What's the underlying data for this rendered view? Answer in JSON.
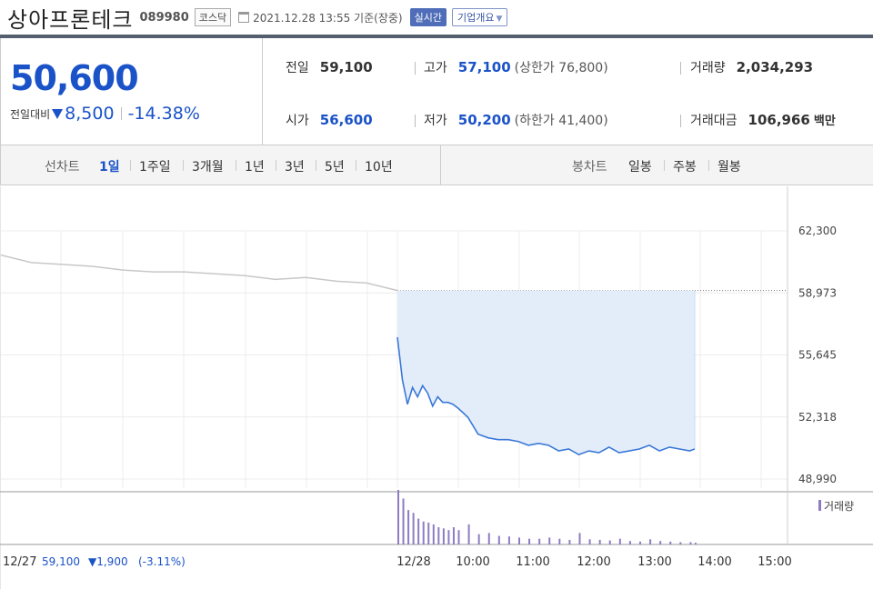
{
  "header": {
    "name": "상아프론테크",
    "code": "089980",
    "market": "코스닥",
    "datetime": "2021.12.28 13:55 기준(장중)",
    "realtime_label": "실시간",
    "company_label": "기업개요"
  },
  "quote": {
    "price": "50,600",
    "change_label": "전일대비",
    "change": "8,500",
    "change_pct": "-14.38%",
    "prev_close_label": "전일",
    "prev_close": "59,100",
    "open_label": "시가",
    "open": "56,600",
    "high_label": "고가",
    "high": "57,100",
    "upper_limit": "(상한가 76,800)",
    "low_label": "저가",
    "low": "50,200",
    "lower_limit": "(하한가 41,400)",
    "volume_label": "거래량",
    "volume": "2,034,293",
    "amount_label": "거래대금",
    "amount": "106,966",
    "amount_unit": "백만"
  },
  "periods": {
    "line_label": "선차트",
    "line_tabs": [
      "1일",
      "1주일",
      "3개월",
      "1년",
      "3년",
      "5년",
      "10년"
    ],
    "active": "1일",
    "candle_label": "봉차트",
    "candle_tabs": [
      "일봉",
      "주봉",
      "월봉"
    ]
  },
  "colors": {
    "up": "#e8412c",
    "down": "#1a52c8",
    "today_line": "#3a78d8",
    "today_fill": "#e3edfa",
    "prev_line": "#c8c8c8",
    "volume_bar": "#8e7cc3"
  },
  "chart_data": {
    "type": "line",
    "y_ticks": [
      "62,300",
      "58,973",
      "55,645",
      "52,318",
      "48,990"
    ],
    "ylim": [
      48990,
      62300
    ],
    "reference_price": 59100,
    "x_labels": [
      "12/28",
      "10:00",
      "11:00",
      "12:00",
      "13:00",
      "14:00",
      "15:00"
    ],
    "prev_day_label": "12/27",
    "prev_day_close": "59,100",
    "prev_day_change": "1,900",
    "prev_day_pct": "(-3.11%)",
    "volume_legend": "거래량",
    "grid": true,
    "series": [
      {
        "name": "12/27",
        "x": [
          "09:00",
          "09:30",
          "10:00",
          "10:30",
          "11:00",
          "11:30",
          "12:00",
          "12:30",
          "13:00",
          "13:30",
          "14:00",
          "14:30",
          "15:00",
          "15:30"
        ],
        "values": [
          61000,
          60600,
          60500,
          60400,
          60200,
          60100,
          60100,
          60000,
          59900,
          59700,
          59800,
          59600,
          59500,
          59100
        ]
      },
      {
        "name": "12/28",
        "x": [
          "09:00",
          "09:05",
          "09:10",
          "09:15",
          "09:20",
          "09:25",
          "09:30",
          "09:35",
          "09:40",
          "09:45",
          "09:50",
          "09:55",
          "10:00",
          "10:10",
          "10:20",
          "10:30",
          "10:40",
          "10:50",
          "11:00",
          "11:10",
          "11:20",
          "11:30",
          "11:40",
          "11:50",
          "12:00",
          "12:10",
          "12:20",
          "12:30",
          "12:40",
          "12:50",
          "13:00",
          "13:10",
          "13:20",
          "13:30",
          "13:40",
          "13:50",
          "13:55"
        ],
        "values": [
          56600,
          54300,
          53000,
          53900,
          53400,
          54000,
          53600,
          52900,
          53400,
          53100,
          53100,
          53000,
          52800,
          52300,
          51400,
          51200,
          51100,
          51100,
          51000,
          50800,
          50900,
          50800,
          50500,
          50600,
          50300,
          50500,
          50400,
          50700,
          50400,
          50500,
          50600,
          50800,
          50500,
          50700,
          50600,
          50500,
          50600
        ]
      }
    ],
    "volume": {
      "x": [
        "09:00",
        "09:05",
        "09:10",
        "09:15",
        "09:20",
        "09:25",
        "09:30",
        "09:35",
        "09:40",
        "09:45",
        "09:50",
        "09:55",
        "10:00",
        "10:10",
        "10:20",
        "10:30",
        "10:40",
        "10:50",
        "11:00",
        "11:10",
        "11:20",
        "11:30",
        "11:40",
        "11:50",
        "12:00",
        "12:10",
        "12:20",
        "12:30",
        "12:40",
        "12:50",
        "13:00",
        "13:10",
        "13:20",
        "13:30",
        "13:40",
        "13:50",
        "13:55"
      ],
      "values": [
        95,
        80,
        60,
        55,
        45,
        40,
        38,
        35,
        30,
        28,
        25,
        30,
        25,
        35,
        18,
        20,
        15,
        14,
        12,
        10,
        10,
        12,
        10,
        8,
        20,
        9,
        8,
        7,
        10,
        6,
        5,
        9,
        6,
        5,
        4,
        4,
        3
      ]
    }
  }
}
